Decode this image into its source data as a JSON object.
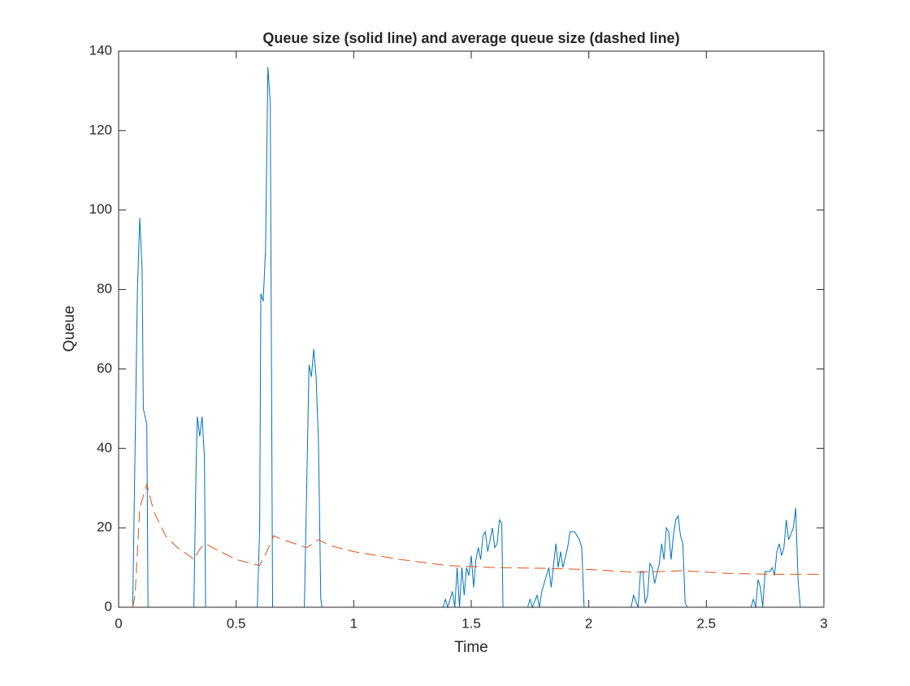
{
  "chart_data": {
    "type": "line",
    "title": "Queue size (solid line) and average queue size (dashed line)",
    "x_label": "Time",
    "y_label": "Queue",
    "xlim": [
      0,
      3
    ],
    "xticks": [
      0,
      0.5,
      1,
      1.5,
      2,
      2.5,
      3
    ],
    "ylim": [
      0,
      140
    ],
    "yticks": [
      0,
      20,
      40,
      60,
      80,
      100,
      120,
      140
    ],
    "series": [
      {
        "color": "#0072bd",
        "dash": false,
        "x": [
          0,
          0.06,
          0.08,
          0.09,
          0.1,
          0.105,
          0.12,
          0.125,
          0.32,
          0.33,
          0.335,
          0.345,
          0.355,
          0.365,
          0.37,
          0.59,
          0.6,
          0.605,
          0.615,
          0.625,
          0.635,
          0.645,
          0.655,
          0.79,
          0.8,
          0.81,
          0.82,
          0.83,
          0.84,
          0.85,
          0.86,
          0.865,
          1.38,
          1.39,
          1.4,
          1.42,
          1.43,
          1.44,
          1.45,
          1.46,
          1.47,
          1.48,
          1.49,
          1.5,
          1.51,
          1.52,
          1.53,
          1.54,
          1.55,
          1.56,
          1.57,
          1.58,
          1.59,
          1.6,
          1.61,
          1.62,
          1.63,
          1.635,
          1.74,
          1.75,
          1.76,
          1.78,
          1.79,
          1.8,
          1.82,
          1.83,
          1.84,
          1.86,
          1.87,
          1.88,
          1.89,
          1.91,
          1.92,
          1.94,
          1.96,
          1.97,
          1.98,
          2.18,
          2.19,
          2.21,
          2.22,
          2.23,
          2.24,
          2.25,
          2.26,
          2.27,
          2.28,
          2.3,
          2.31,
          2.32,
          2.33,
          2.34,
          2.35,
          2.36,
          2.37,
          2.38,
          2.39,
          2.4,
          2.41,
          2.42,
          2.69,
          2.7,
          2.71,
          2.72,
          2.73,
          2.74,
          2.75,
          2.77,
          2.78,
          2.79,
          2.8,
          2.81,
          2.82,
          2.83,
          2.84,
          2.85,
          2.87,
          2.88,
          2.89,
          2.9,
          3
        ],
        "values": [
          0,
          0,
          80,
          98,
          85,
          50,
          46,
          0,
          0,
          37,
          48,
          43,
          48,
          38,
          0,
          0,
          20,
          79,
          77,
          90,
          136,
          127,
          0,
          0,
          30,
          61,
          58,
          65,
          58,
          42,
          2,
          0,
          0,
          2,
          0,
          4,
          0,
          10,
          0,
          10,
          3,
          10,
          8,
          13,
          5,
          12,
          15,
          12,
          18,
          19,
          14,
          17,
          20,
          15,
          16,
          22,
          21,
          0,
          0,
          2,
          0,
          3,
          0,
          4,
          8,
          10,
          5,
          16,
          10,
          14,
          10,
          15,
          19,
          19,
          17,
          15,
          0,
          0,
          3,
          0,
          9,
          9,
          1,
          3,
          11,
          10,
          6,
          11,
          16,
          12,
          20,
          19,
          12,
          18,
          22,
          23,
          18,
          16,
          1,
          0,
          0,
          2,
          0,
          7,
          5,
          0,
          9,
          9,
          10,
          8,
          14,
          16,
          13,
          15,
          22,
          17,
          20,
          25,
          7,
          0,
          0
        ]
      },
      {
        "color": "#d95319",
        "dash": true,
        "x": [
          0.06,
          0.07,
          0.09,
          0.12,
          0.15,
          0.2,
          0.25,
          0.3,
          0.32,
          0.35,
          0.37,
          0.4,
          0.5,
          0.6,
          0.63,
          0.66,
          0.7,
          0.8,
          0.85,
          0.9,
          1,
          1.2,
          1.4,
          1.6,
          1.8,
          2,
          2.2,
          2.4,
          2.6,
          2.8,
          3
        ],
        "values": [
          0,
          3,
          25,
          31,
          24,
          18,
          15,
          13,
          12,
          15,
          16,
          15,
          12,
          10.5,
          14,
          18,
          17,
          15,
          17,
          15.5,
          14,
          12,
          10.5,
          10,
          9.8,
          9.5,
          8.8,
          9.2,
          8.5,
          8.3,
          8.3
        ]
      }
    ]
  }
}
